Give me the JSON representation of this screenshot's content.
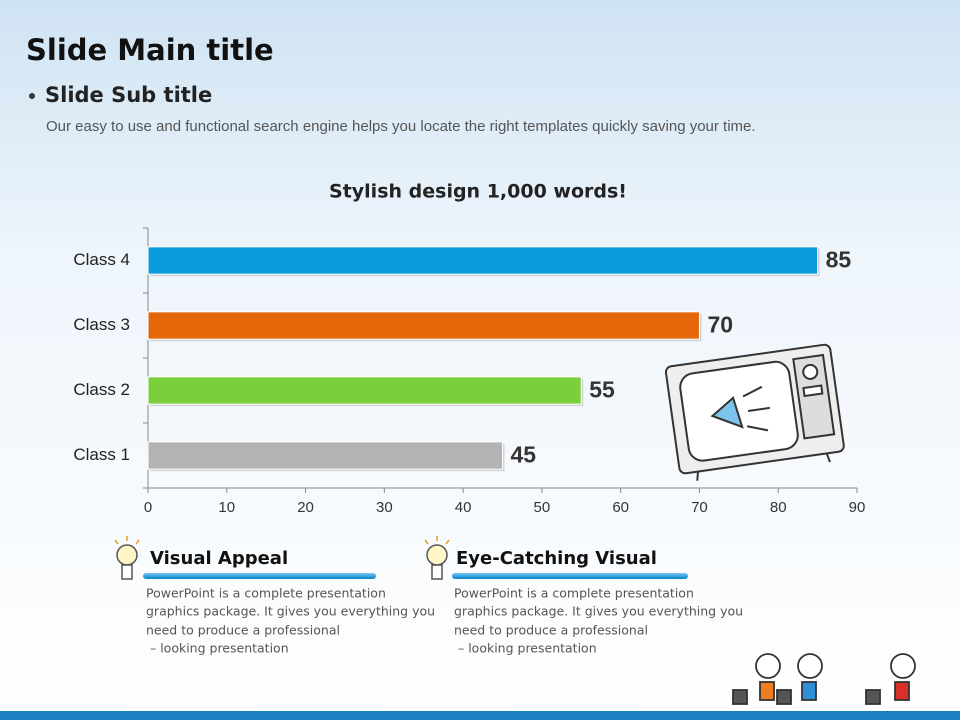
{
  "title": "Slide Main title",
  "subtitle": "Slide Sub title",
  "description": "Our easy to use and functional search engine helps you locate the right templates  quickly  saving your time.",
  "chart_data": {
    "type": "bar",
    "orientation": "horizontal",
    "title": "Stylish design 1,000 words!",
    "categories": [
      "Class 1",
      "Class 2",
      "Class 3",
      "Class 4"
    ],
    "values": [
      45,
      55,
      70,
      85
    ],
    "colors": [
      "#b3b3b3",
      "#7ccf3c",
      "#e4680a",
      "#0b9ddb"
    ],
    "xlim": [
      0,
      90
    ],
    "xticks": [
      0,
      10,
      20,
      30,
      40,
      50,
      60,
      70,
      80,
      90
    ]
  },
  "features": [
    {
      "title": "Visual Appeal",
      "lines": [
        "PowerPoint is a complete presentation",
        "graphics package. It gives you everything you",
        "need to produce a professional",
        " – looking presentation"
      ]
    },
    {
      "title": "Eye-Catching Visual",
      "lines": [
        "PowerPoint is a complete presentation",
        "graphics package. It gives you everything you",
        "need to produce a professional",
        " – looking presentation"
      ]
    }
  ]
}
